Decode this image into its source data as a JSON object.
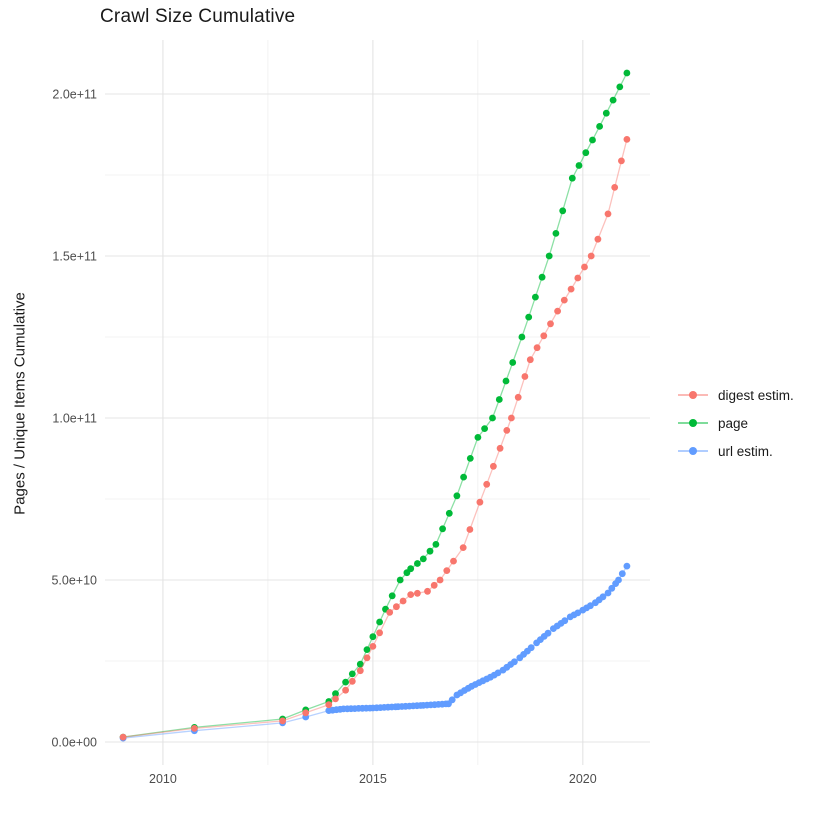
{
  "title": "Crawl Size Cumulative",
  "axes": {
    "y_label": "Pages / Unique Items Cumulative",
    "y_ticks": [
      {
        "label": "0.0e+00",
        "value": 0
      },
      {
        "label": "5.0e+10",
        "value": 50000000000.0
      },
      {
        "label": "1.0e+11",
        "value": 100000000000.0
      },
      {
        "label": "1.5e+11",
        "value": 150000000000.0
      },
      {
        "label": "2.0e+11",
        "value": 200000000000.0
      }
    ],
    "x_ticks": [
      {
        "label": "2010",
        "value": 2010
      },
      {
        "label": "2015",
        "value": 2015
      },
      {
        "label": "2020",
        "value": 2020
      }
    ]
  },
  "legend": {
    "items": [
      {
        "label": "digest estim.",
        "color": "#F8766D"
      },
      {
        "label": "page",
        "color": "#00BA38"
      },
      {
        "label": "url estim.",
        "color": "#619CFF"
      }
    ]
  },
  "chart_data": {
    "type": "line",
    "title": "Crawl Size Cumulative",
    "xlabel": "",
    "ylabel": "Pages / Unique Items Cumulative",
    "xlim": [
      2008.62,
      2021.6
    ],
    "ylim": [
      -7100000000.0,
      216670000000.0
    ],
    "x_tick_values": [
      2010,
      2015,
      2020
    ],
    "y_tick_values": [
      0,
      50000000000.0,
      100000000000.0,
      150000000000.0,
      200000000000.0
    ],
    "grid": true,
    "legend_position": "right",
    "draw_order": [
      1,
      2,
      0
    ],
    "dense_from": 2013.9,
    "series": [
      {
        "name": "digest estim.",
        "color": "#F8766D",
        "dot_interval": 0.16,
        "points": [
          [
            2009.05,
            1500000000.0
          ],
          [
            2010.75,
            4200000000.0
          ],
          [
            2012.85,
            6500000000.0
          ],
          [
            2013.4,
            9000000000.0
          ],
          [
            2013.95,
            11500000000.0
          ],
          [
            2014.35,
            16000000000.0
          ],
          [
            2014.7,
            22000000000.0
          ],
          [
            2015.0,
            29500000000.0
          ],
          [
            2015.4,
            40000000000.0
          ],
          [
            2015.9,
            45500000000.0
          ],
          [
            2016.3,
            46500000000.0
          ],
          [
            2016.6,
            50000000000.0
          ],
          [
            2017.15,
            60000000000.0
          ],
          [
            2017.55,
            74000000000.0
          ],
          [
            2018.3,
            100000000000.0
          ],
          [
            2018.75,
            118000000000.0
          ],
          [
            2019.4,
            133000000000.0
          ],
          [
            2020.2,
            150000000000.0
          ],
          [
            2020.6,
            163000000000.0
          ],
          [
            2021.05,
            186000000000.0
          ]
        ]
      },
      {
        "name": "page",
        "color": "#00BA38",
        "dot_interval": 0.16,
        "points": [
          [
            2009.05,
            1500000000.0
          ],
          [
            2010.75,
            4500000000.0
          ],
          [
            2012.85,
            7100000000.0
          ],
          [
            2013.4,
            9900000000.0
          ],
          [
            2013.95,
            12500000000.0
          ],
          [
            2014.35,
            18500000000.0
          ],
          [
            2014.7,
            24000000000.0
          ],
          [
            2015.0,
            32500000000.0
          ],
          [
            2015.3,
            41000000000.0
          ],
          [
            2015.65,
            50000000000.0
          ],
          [
            2015.9,
            53500000000.0
          ],
          [
            2016.2,
            56500000000.0
          ],
          [
            2016.5,
            61000000000.0
          ],
          [
            2017.0,
            76000000000.0
          ],
          [
            2017.5,
            94000000000.0
          ],
          [
            2017.85,
            100000000000.0
          ],
          [
            2018.55,
            125000000000.0
          ],
          [
            2019.2,
            150000000000.0
          ],
          [
            2019.75,
            174000000000.0
          ],
          [
            2020.4,
            190000000000.0
          ],
          [
            2021.05,
            206500000000.0
          ]
        ]
      },
      {
        "name": "url estim.",
        "color": "#619CFF",
        "dot_interval": 0.09,
        "points": [
          [
            2009.05,
            1200000000.0
          ],
          [
            2010.75,
            3500000000.0
          ],
          [
            2012.85,
            5900000000.0
          ],
          [
            2013.4,
            7700000000.0
          ],
          [
            2013.95,
            9700000000.0
          ],
          [
            2014.3,
            10200000000.0
          ],
          [
            2015.0,
            10500000000.0
          ],
          [
            2015.6,
            10900000000.0
          ],
          [
            2016.2,
            11300000000.0
          ],
          [
            2016.8,
            11800000000.0
          ],
          [
            2017.0,
            14500000000.0
          ],
          [
            2017.35,
            17200000000.0
          ],
          [
            2017.8,
            20000000000.0
          ],
          [
            2018.1,
            22200000000.0
          ],
          [
            2018.5,
            26000000000.0
          ],
          [
            2018.9,
            30600000000.0
          ],
          [
            2019.3,
            35000000000.0
          ],
          [
            2019.7,
            38600000000.0
          ],
          [
            2020.0,
            40700000000.0
          ],
          [
            2020.3,
            43000000000.0
          ],
          [
            2020.6,
            46000000000.0
          ],
          [
            2020.85,
            50000000000.0
          ],
          [
            2021.05,
            54300000000.0
          ]
        ]
      }
    ]
  }
}
